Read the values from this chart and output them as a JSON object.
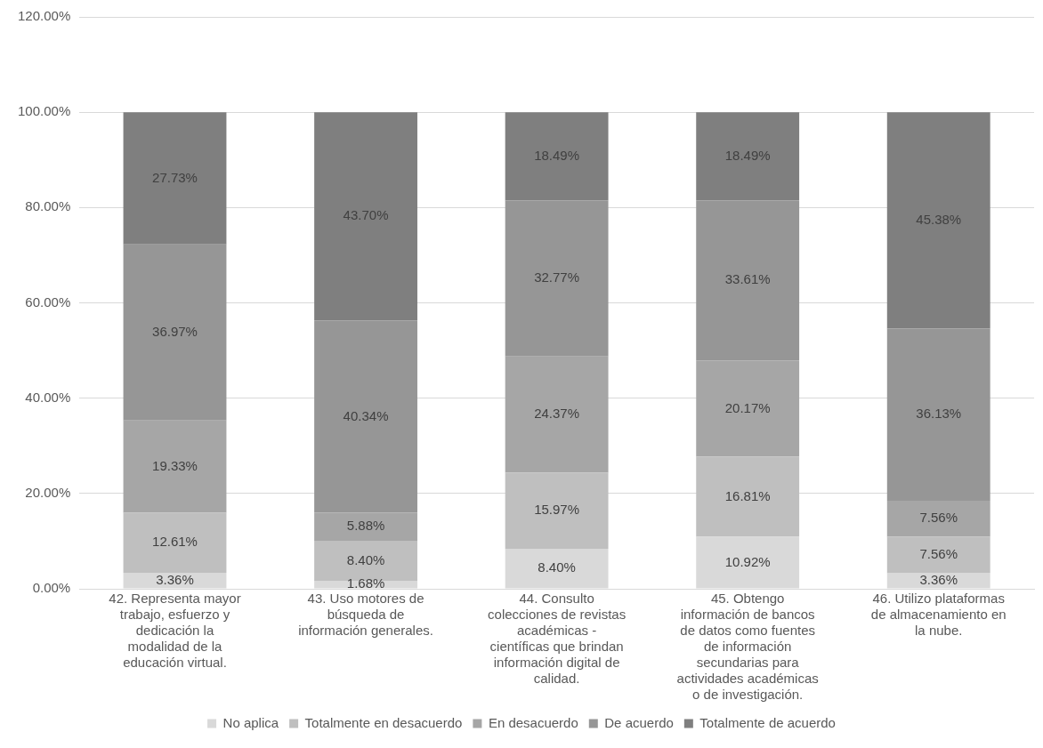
{
  "chart_data": {
    "type": "bar",
    "stacked": true,
    "categories": [
      "42. Representa mayor trabajo, esfuerzo y dedicación la modalidad de la educación virtual.",
      "43. Uso motores de búsqueda de información generales.",
      "44. Consulto colecciones de revistas académicas - científicas que brindan información digital de calidad.",
      "45. Obtengo información de bancos de datos como fuentes de información secundarias para actividades académicas o de investigación.",
      "46. Utilizo plataformas de almacenamiento en la nube."
    ],
    "series": [
      {
        "name": "No aplica",
        "color": "#d9d9d9",
        "values": [
          3.36,
          1.68,
          8.4,
          10.92,
          3.36
        ],
        "value_labels": [
          "3.36%",
          "1.68%",
          "8.40%",
          "10.92%",
          "3.36%"
        ]
      },
      {
        "name": "Totalmente en desacuerdo",
        "color": "#bfbfbf",
        "values": [
          12.61,
          8.4,
          15.97,
          16.81,
          7.56
        ],
        "value_labels": [
          "12.61%",
          "8.40%",
          "15.97%",
          "16.81%",
          "7.56%"
        ]
      },
      {
        "name": "En desacuerdo",
        "color": "#a6a6a6",
        "values": [
          19.33,
          5.88,
          24.37,
          20.17,
          7.56
        ],
        "value_labels": [
          "19.33%",
          "5.88%",
          "24.37%",
          "20.17%",
          "7.56%"
        ]
      },
      {
        "name": "De acuerdo",
        "color": "#969696",
        "values": [
          36.97,
          40.34,
          32.77,
          33.61,
          36.13
        ],
        "value_labels": [
          "36.97%",
          "40.34%",
          "32.77%",
          "33.61%",
          "36.13%"
        ]
      },
      {
        "name": "Totalmente de acuerdo",
        "color": "#7f7f7f",
        "values": [
          27.73,
          43.7,
          18.49,
          18.49,
          45.38
        ],
        "value_labels": [
          "27.73%",
          "43.70%",
          "18.49%",
          "18.49%",
          "45.38%"
        ]
      }
    ],
    "ylim": [
      0,
      120
    ],
    "yticks": [
      {
        "value": 0,
        "label": "0.00%"
      },
      {
        "value": 20,
        "label": "20.00%"
      },
      {
        "value": 40,
        "label": "40.00%"
      },
      {
        "value": 60,
        "label": "60.00%"
      },
      {
        "value": 80,
        "label": "80.00%"
      },
      {
        "value": 100,
        "label": "100.00%"
      },
      {
        "value": 120,
        "label": "120.00%"
      }
    ],
    "grid": "y",
    "legend": "bottom"
  }
}
